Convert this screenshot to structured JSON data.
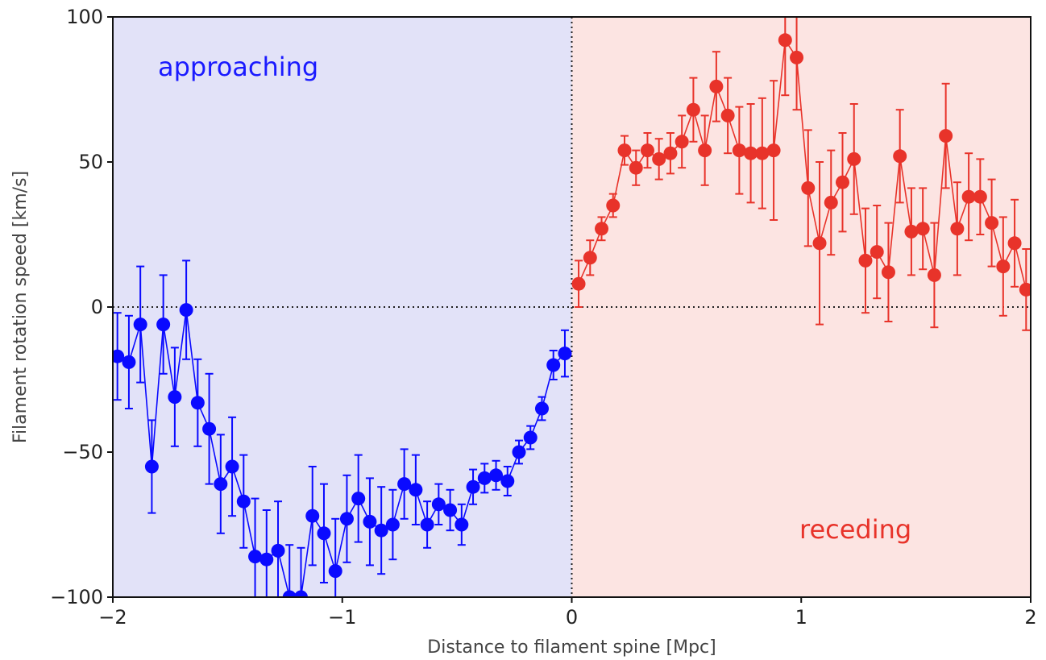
{
  "chart_data": {
    "type": "scatter",
    "xlabel": "Distance to filament spine [Mpc]",
    "ylabel": "Filament rotation speed [km/s]",
    "xlim": [
      -2,
      2
    ],
    "ylim": [
      -100,
      100
    ],
    "xticks": [
      -2,
      -1,
      0,
      1,
      2
    ],
    "xtick_labels": [
      "−2",
      "−1",
      "0",
      "1",
      "2"
    ],
    "yticks": [
      -100,
      -50,
      0,
      50,
      100
    ],
    "ytick_labels": [
      "−100",
      "−50",
      "0",
      "50",
      "100"
    ],
    "grid": false,
    "reference_lines": {
      "x": 0,
      "y": 0,
      "style": "dotted"
    },
    "regions": [
      {
        "label": "approaching",
        "x_from": -2,
        "x_to": 0,
        "fill": "#e2e2f8",
        "text_color": "#1a1aff"
      },
      {
        "label": "receding",
        "x_from": 0,
        "x_to": 2,
        "fill": "#fce4e2",
        "text_color": "#e8332a"
      }
    ],
    "series": [
      {
        "color": "#0a0aff",
        "points": [
          {
            "x": -1.98,
            "y": -17,
            "err": 15
          },
          {
            "x": -1.93,
            "y": -19,
            "err": 16
          },
          {
            "x": -1.88,
            "y": -6,
            "err": 20
          },
          {
            "x": -1.83,
            "y": -55,
            "err": 16
          },
          {
            "x": -1.78,
            "y": -6,
            "err": 17
          },
          {
            "x": -1.73,
            "y": -31,
            "err": 17
          },
          {
            "x": -1.68,
            "y": -1,
            "err": 17
          },
          {
            "x": -1.63,
            "y": -33,
            "err": 15
          },
          {
            "x": -1.58,
            "y": -42,
            "err": 19
          },
          {
            "x": -1.53,
            "y": -61,
            "err": 17
          },
          {
            "x": -1.48,
            "y": -55,
            "err": 17
          },
          {
            "x": -1.43,
            "y": -67,
            "err": 16
          },
          {
            "x": -1.38,
            "y": -86,
            "err": 20
          },
          {
            "x": -1.33,
            "y": -87,
            "err": 17
          },
          {
            "x": -1.28,
            "y": -84,
            "err": 17
          },
          {
            "x": -1.23,
            "y": -100,
            "err": 18
          },
          {
            "x": -1.18,
            "y": -100,
            "err": 17
          },
          {
            "x": -1.13,
            "y": -72,
            "err": 17
          },
          {
            "x": -1.08,
            "y": -78,
            "err": 17
          },
          {
            "x": -1.03,
            "y": -91,
            "err": 18
          },
          {
            "x": -0.98,
            "y": -73,
            "err": 15
          },
          {
            "x": -0.93,
            "y": -66,
            "err": 15
          },
          {
            "x": -0.88,
            "y": -74,
            "err": 15
          },
          {
            "x": -0.83,
            "y": -77,
            "err": 15
          },
          {
            "x": -0.78,
            "y": -75,
            "err": 12
          },
          {
            "x": -0.73,
            "y": -61,
            "err": 12
          },
          {
            "x": -0.68,
            "y": -63,
            "err": 12
          },
          {
            "x": -0.63,
            "y": -75,
            "err": 8
          },
          {
            "x": -0.58,
            "y": -68,
            "err": 7
          },
          {
            "x": -0.53,
            "y": -70,
            "err": 7
          },
          {
            "x": -0.48,
            "y": -75,
            "err": 7
          },
          {
            "x": -0.43,
            "y": -62,
            "err": 6
          },
          {
            "x": -0.38,
            "y": -59,
            "err": 5
          },
          {
            "x": -0.33,
            "y": -58,
            "err": 5
          },
          {
            "x": -0.28,
            "y": -60,
            "err": 5
          },
          {
            "x": -0.23,
            "y": -50,
            "err": 4
          },
          {
            "x": -0.18,
            "y": -45,
            "err": 4
          },
          {
            "x": -0.13,
            "y": -35,
            "err": 4
          },
          {
            "x": -0.08,
            "y": -20,
            "err": 5
          },
          {
            "x": -0.03,
            "y": -16,
            "err": 8
          }
        ]
      },
      {
        "color": "#e8332a",
        "points": [
          {
            "x": 0.03,
            "y": 8,
            "err": 8
          },
          {
            "x": 0.08,
            "y": 17,
            "err": 6
          },
          {
            "x": 0.13,
            "y": 27,
            "err": 4
          },
          {
            "x": 0.18,
            "y": 35,
            "err": 4
          },
          {
            "x": 0.23,
            "y": 54,
            "err": 5
          },
          {
            "x": 0.28,
            "y": 48,
            "err": 6
          },
          {
            "x": 0.33,
            "y": 54,
            "err": 6
          },
          {
            "x": 0.38,
            "y": 51,
            "err": 7
          },
          {
            "x": 0.43,
            "y": 53,
            "err": 7
          },
          {
            "x": 0.48,
            "y": 57,
            "err": 9
          },
          {
            "x": 0.53,
            "y": 68,
            "err": 11
          },
          {
            "x": 0.58,
            "y": 54,
            "err": 12
          },
          {
            "x": 0.63,
            "y": 76,
            "err": 12
          },
          {
            "x": 0.68,
            "y": 66,
            "err": 13
          },
          {
            "x": 0.73,
            "y": 54,
            "err": 15
          },
          {
            "x": 0.78,
            "y": 53,
            "err": 17
          },
          {
            "x": 0.83,
            "y": 53,
            "err": 19
          },
          {
            "x": 0.88,
            "y": 54,
            "err": 24
          },
          {
            "x": 0.93,
            "y": 92,
            "err": 19
          },
          {
            "x": 0.98,
            "y": 86,
            "err": 18
          },
          {
            "x": 1.03,
            "y": 41,
            "err": 20
          },
          {
            "x": 1.08,
            "y": 22,
            "err": 28
          },
          {
            "x": 1.13,
            "y": 36,
            "err": 18
          },
          {
            "x": 1.18,
            "y": 43,
            "err": 17
          },
          {
            "x": 1.23,
            "y": 51,
            "err": 19
          },
          {
            "x": 1.28,
            "y": 16,
            "err": 18
          },
          {
            "x": 1.33,
            "y": 19,
            "err": 16
          },
          {
            "x": 1.38,
            "y": 12,
            "err": 17
          },
          {
            "x": 1.43,
            "y": 52,
            "err": 16
          },
          {
            "x": 1.48,
            "y": 26,
            "err": 15
          },
          {
            "x": 1.53,
            "y": 27,
            "err": 14
          },
          {
            "x": 1.58,
            "y": 11,
            "err": 18
          },
          {
            "x": 1.63,
            "y": 59,
            "err": 18
          },
          {
            "x": 1.68,
            "y": 27,
            "err": 16
          },
          {
            "x": 1.73,
            "y": 38,
            "err": 15
          },
          {
            "x": 1.78,
            "y": 38,
            "err": 13
          },
          {
            "x": 1.83,
            "y": 29,
            "err": 15
          },
          {
            "x": 1.88,
            "y": 14,
            "err": 17
          },
          {
            "x": 1.93,
            "y": 22,
            "err": 15
          },
          {
            "x": 1.98,
            "y": 6,
            "err": 14
          }
        ]
      }
    ]
  }
}
